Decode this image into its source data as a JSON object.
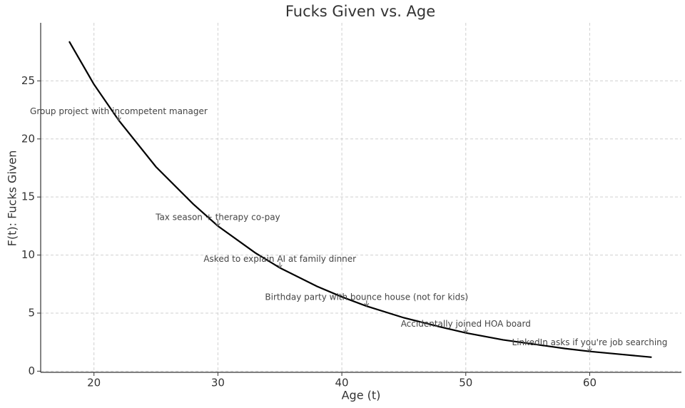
{
  "chart_data": {
    "type": "line",
    "title": "Fucks Given vs. Age",
    "x_label": "Age (t)",
    "y_label": "F(t): Fucks Given",
    "x": [
      18,
      20,
      22,
      25,
      28,
      30,
      33,
      35,
      38,
      40,
      42,
      45,
      48,
      50,
      53,
      55,
      58,
      60,
      63,
      65
    ],
    "series": [
      {
        "color": "#000000",
        "values": [
          28.4,
          24.7,
          21.6,
          17.6,
          14.4,
          12.5,
          10.2,
          8.9,
          7.3,
          6.4,
          5.6,
          4.6,
          3.8,
          3.3,
          2.7,
          2.4,
          1.95,
          1.7,
          1.4,
          1.2
        ]
      }
    ],
    "xlim": [
      15.7,
      67.4
    ],
    "ylim": [
      -0.1,
      30
    ],
    "xticks": [
      20,
      30,
      40,
      50,
      60
    ],
    "yticks": [
      0,
      5,
      10,
      15,
      20,
      25
    ],
    "grid": true,
    "annotations": [
      {
        "text": "Group project with incompetent manager",
        "x": 22,
        "y": 21.6
      },
      {
        "text": "Tax season + therapy co-pay",
        "x": 30,
        "y": 12.5
      },
      {
        "text": "Asked to explain AI at family dinner",
        "x": 35,
        "y": 8.9
      },
      {
        "text": "Birthday party with bounce house (not for kids)",
        "x": 42,
        "y": 5.6
      },
      {
        "text": "Accidentally joined HOA board",
        "x": 50,
        "y": 3.3
      },
      {
        "text": "LinkedIn asks if you're job searching",
        "x": 60,
        "y": 1.7
      }
    ]
  }
}
